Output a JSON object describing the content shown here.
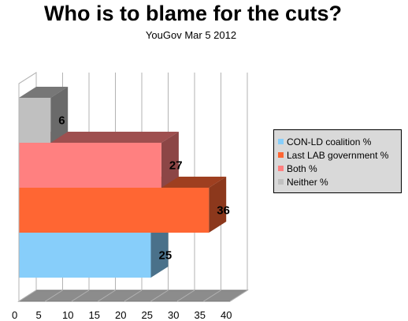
{
  "chart_data": {
    "type": "bar",
    "orientation": "horizontal",
    "style": "3d",
    "title": "Who is to blame for the cuts?",
    "subtitle": "YouGov Mar 5 2012",
    "series": [
      {
        "name": "CON-LD coalition %",
        "value": 25,
        "color": "#87cefa"
      },
      {
        "name": "Last LAB government %",
        "value": 36,
        "color": "#ff6633"
      },
      {
        "name": "Both %",
        "value": 27,
        "color": "#ff8080"
      },
      {
        "name": "Neither %",
        "value": 6,
        "color": "#c0c0c0"
      }
    ],
    "xlim": [
      0,
      40
    ],
    "xticks": [
      0,
      5,
      10,
      15,
      20,
      25,
      30,
      35,
      40
    ],
    "grid": true,
    "legend_position": "right"
  }
}
